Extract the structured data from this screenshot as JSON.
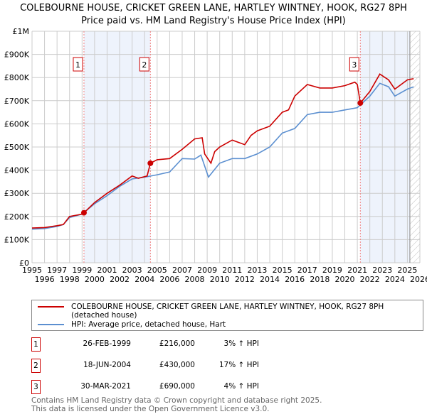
{
  "chart_data": {
    "type": "line",
    "title": "COLEBOURNE HOUSE, CRICKET GREEN LANE, HARTLEY WINTNEY, HOOK, RG27 8PH",
    "subtitle": "Price paid vs. HM Land Registry's House Price Index (HPI)",
    "xlim": [
      1995,
      2026
    ],
    "ylim": [
      0,
      1000000
    ],
    "x_ticks": [
      "1995",
      "1996",
      "1997",
      "1998",
      "1999",
      "2000",
      "2001",
      "2002",
      "2003",
      "2004",
      "2005",
      "2006",
      "2007",
      "2008",
      "2009",
      "2010",
      "2011",
      "2012",
      "2013",
      "2014",
      "2015",
      "2016",
      "2017",
      "2018",
      "2019",
      "2020",
      "2021",
      "2022",
      "2023",
      "2024",
      "2025",
      "2026"
    ],
    "y_ticks": [
      {
        "v": 0,
        "l": "£0"
      },
      {
        "v": 100000,
        "l": "£100K"
      },
      {
        "v": 200000,
        "l": "£200K"
      },
      {
        "v": 300000,
        "l": "£300K"
      },
      {
        "v": 400000,
        "l": "£400K"
      },
      {
        "v": 500000,
        "l": "£500K"
      },
      {
        "v": 600000,
        "l": "£600K"
      },
      {
        "v": 700000,
        "l": "£700K"
      },
      {
        "v": 800000,
        "l": "£800K"
      },
      {
        "v": 900000,
        "l": "£900K"
      },
      {
        "v": 1000000,
        "l": "£1M"
      }
    ],
    "grid": true,
    "series": [
      {
        "name": "COLEBOURNE HOUSE, CRICKET GREEN LANE, HARTLEY WINTNEY, HOOK, RG27 8PH (detached house)",
        "color": "#cc0000",
        "x": [
          1995,
          1996,
          1997,
          1997.5,
          1998,
          1999,
          1999.15,
          2000,
          2001,
          2002,
          2003,
          2003.5,
          2004.2,
          2004.46,
          2005,
          2006,
          2007,
          2008,
          2008.6,
          2008.8,
          2009.3,
          2009.6,
          2010,
          2011,
          2011.5,
          2012,
          2012.5,
          2013,
          2014,
          2015,
          2015.5,
          2016,
          2017,
          2018,
          2019,
          2020,
          2020.8,
          2021.0,
          2021.24,
          2022,
          2022.8,
          2023.5,
          2024,
          2025,
          2025.5
        ],
        "y": [
          150000,
          152000,
          160000,
          165000,
          200000,
          210000,
          216000,
          260000,
          300000,
          335000,
          375000,
          365000,
          375000,
          430000,
          445000,
          450000,
          490000,
          535000,
          540000,
          470000,
          430000,
          480000,
          500000,
          530000,
          520000,
          510000,
          550000,
          570000,
          590000,
          650000,
          660000,
          720000,
          770000,
          755000,
          755000,
          765000,
          780000,
          770000,
          690000,
          740000,
          815000,
          790000,
          750000,
          790000,
          795000
        ]
      },
      {
        "name": "HPI: Average price, detached house, Hart",
        "color": "#5b8fd0",
        "x": [
          1995,
          1996,
          1997,
          1997.5,
          1998,
          1999,
          2000,
          2001,
          2002,
          2003,
          2004,
          2005,
          2006,
          2007,
          2008,
          2008.5,
          2009.1,
          2010,
          2011,
          2012,
          2013,
          2014,
          2015,
          2016,
          2017,
          2018,
          2019,
          2020,
          2021,
          2022,
          2022.8,
          2023.5,
          2024,
          2025,
          2025.5
        ],
        "y": [
          145000,
          148000,
          157000,
          165000,
          195000,
          210000,
          255000,
          290000,
          330000,
          362000,
          370000,
          380000,
          392000,
          450000,
          448000,
          465000,
          370000,
          430000,
          450000,
          450000,
          470000,
          500000,
          560000,
          580000,
          640000,
          650000,
          650000,
          660000,
          670000,
          720000,
          775000,
          760000,
          720000,
          750000,
          760000
        ]
      }
    ],
    "sales": [
      {
        "n": "1",
        "date": "26-FEB-1999",
        "x": 1999.15,
        "price": "£216,000",
        "value": 216000,
        "hpi": "3% ↑ HPI"
      },
      {
        "n": "2",
        "date": "18-JUN-2004",
        "x": 2004.46,
        "price": "£430,000",
        "value": 430000,
        "hpi": "17% ↑ HPI"
      },
      {
        "n": "3",
        "date": "30-MAR-2021",
        "x": 2021.24,
        "price": "£690,000",
        "value": 690000,
        "hpi": "4% ↑ HPI"
      }
    ]
  },
  "legend": {
    "red": "COLEBOURNE HOUSE, CRICKET GREEN LANE, HARTLEY WINTNEY, HOOK, RG27 8PH (detached house)",
    "blue": "HPI: Average price, detached house, Hart"
  },
  "footer": {
    "line1": "Contains HM Land Registry data © Crown copyright and database right 2025.",
    "line2": "This data is licensed under the Open Government Licence v3.0."
  }
}
